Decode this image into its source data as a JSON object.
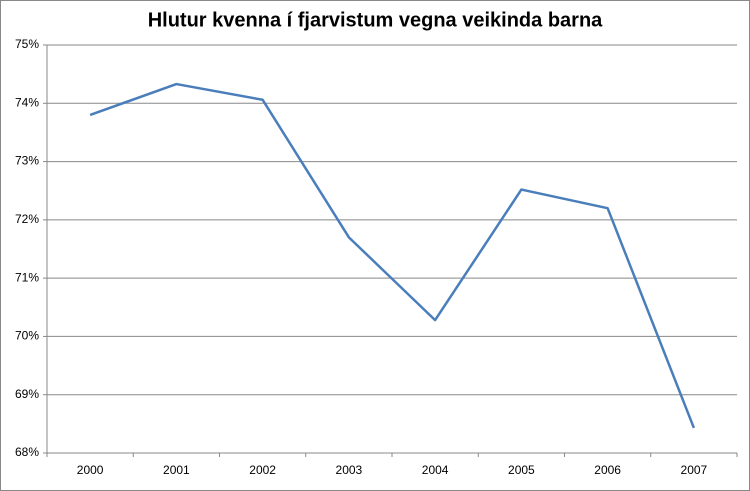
{
  "chart_data": {
    "type": "line",
    "title": "Hlutur kvenna í fjarvistum vegna veikinda barna",
    "categories": [
      "2000",
      "2001",
      "2002",
      "2003",
      "2004",
      "2005",
      "2006",
      "2007"
    ],
    "series": [
      {
        "name": "Hlutur kvenna",
        "color": "#4a7ebb",
        "values": [
          73.8,
          74.33,
          74.06,
          71.7,
          70.28,
          72.52,
          72.2,
          68.43
        ]
      }
    ],
    "ylim": [
      68,
      75
    ],
    "yticks": [
      {
        "value": 68,
        "label": "68%"
      },
      {
        "value": 69,
        "label": "69%"
      },
      {
        "value": 70,
        "label": "70%"
      },
      {
        "value": 71,
        "label": "71%"
      },
      {
        "value": 72,
        "label": "72%"
      },
      {
        "value": 73,
        "label": "73%"
      },
      {
        "value": 74,
        "label": "74%"
      },
      {
        "value": 75,
        "label": "75%"
      }
    ],
    "grid": true
  }
}
